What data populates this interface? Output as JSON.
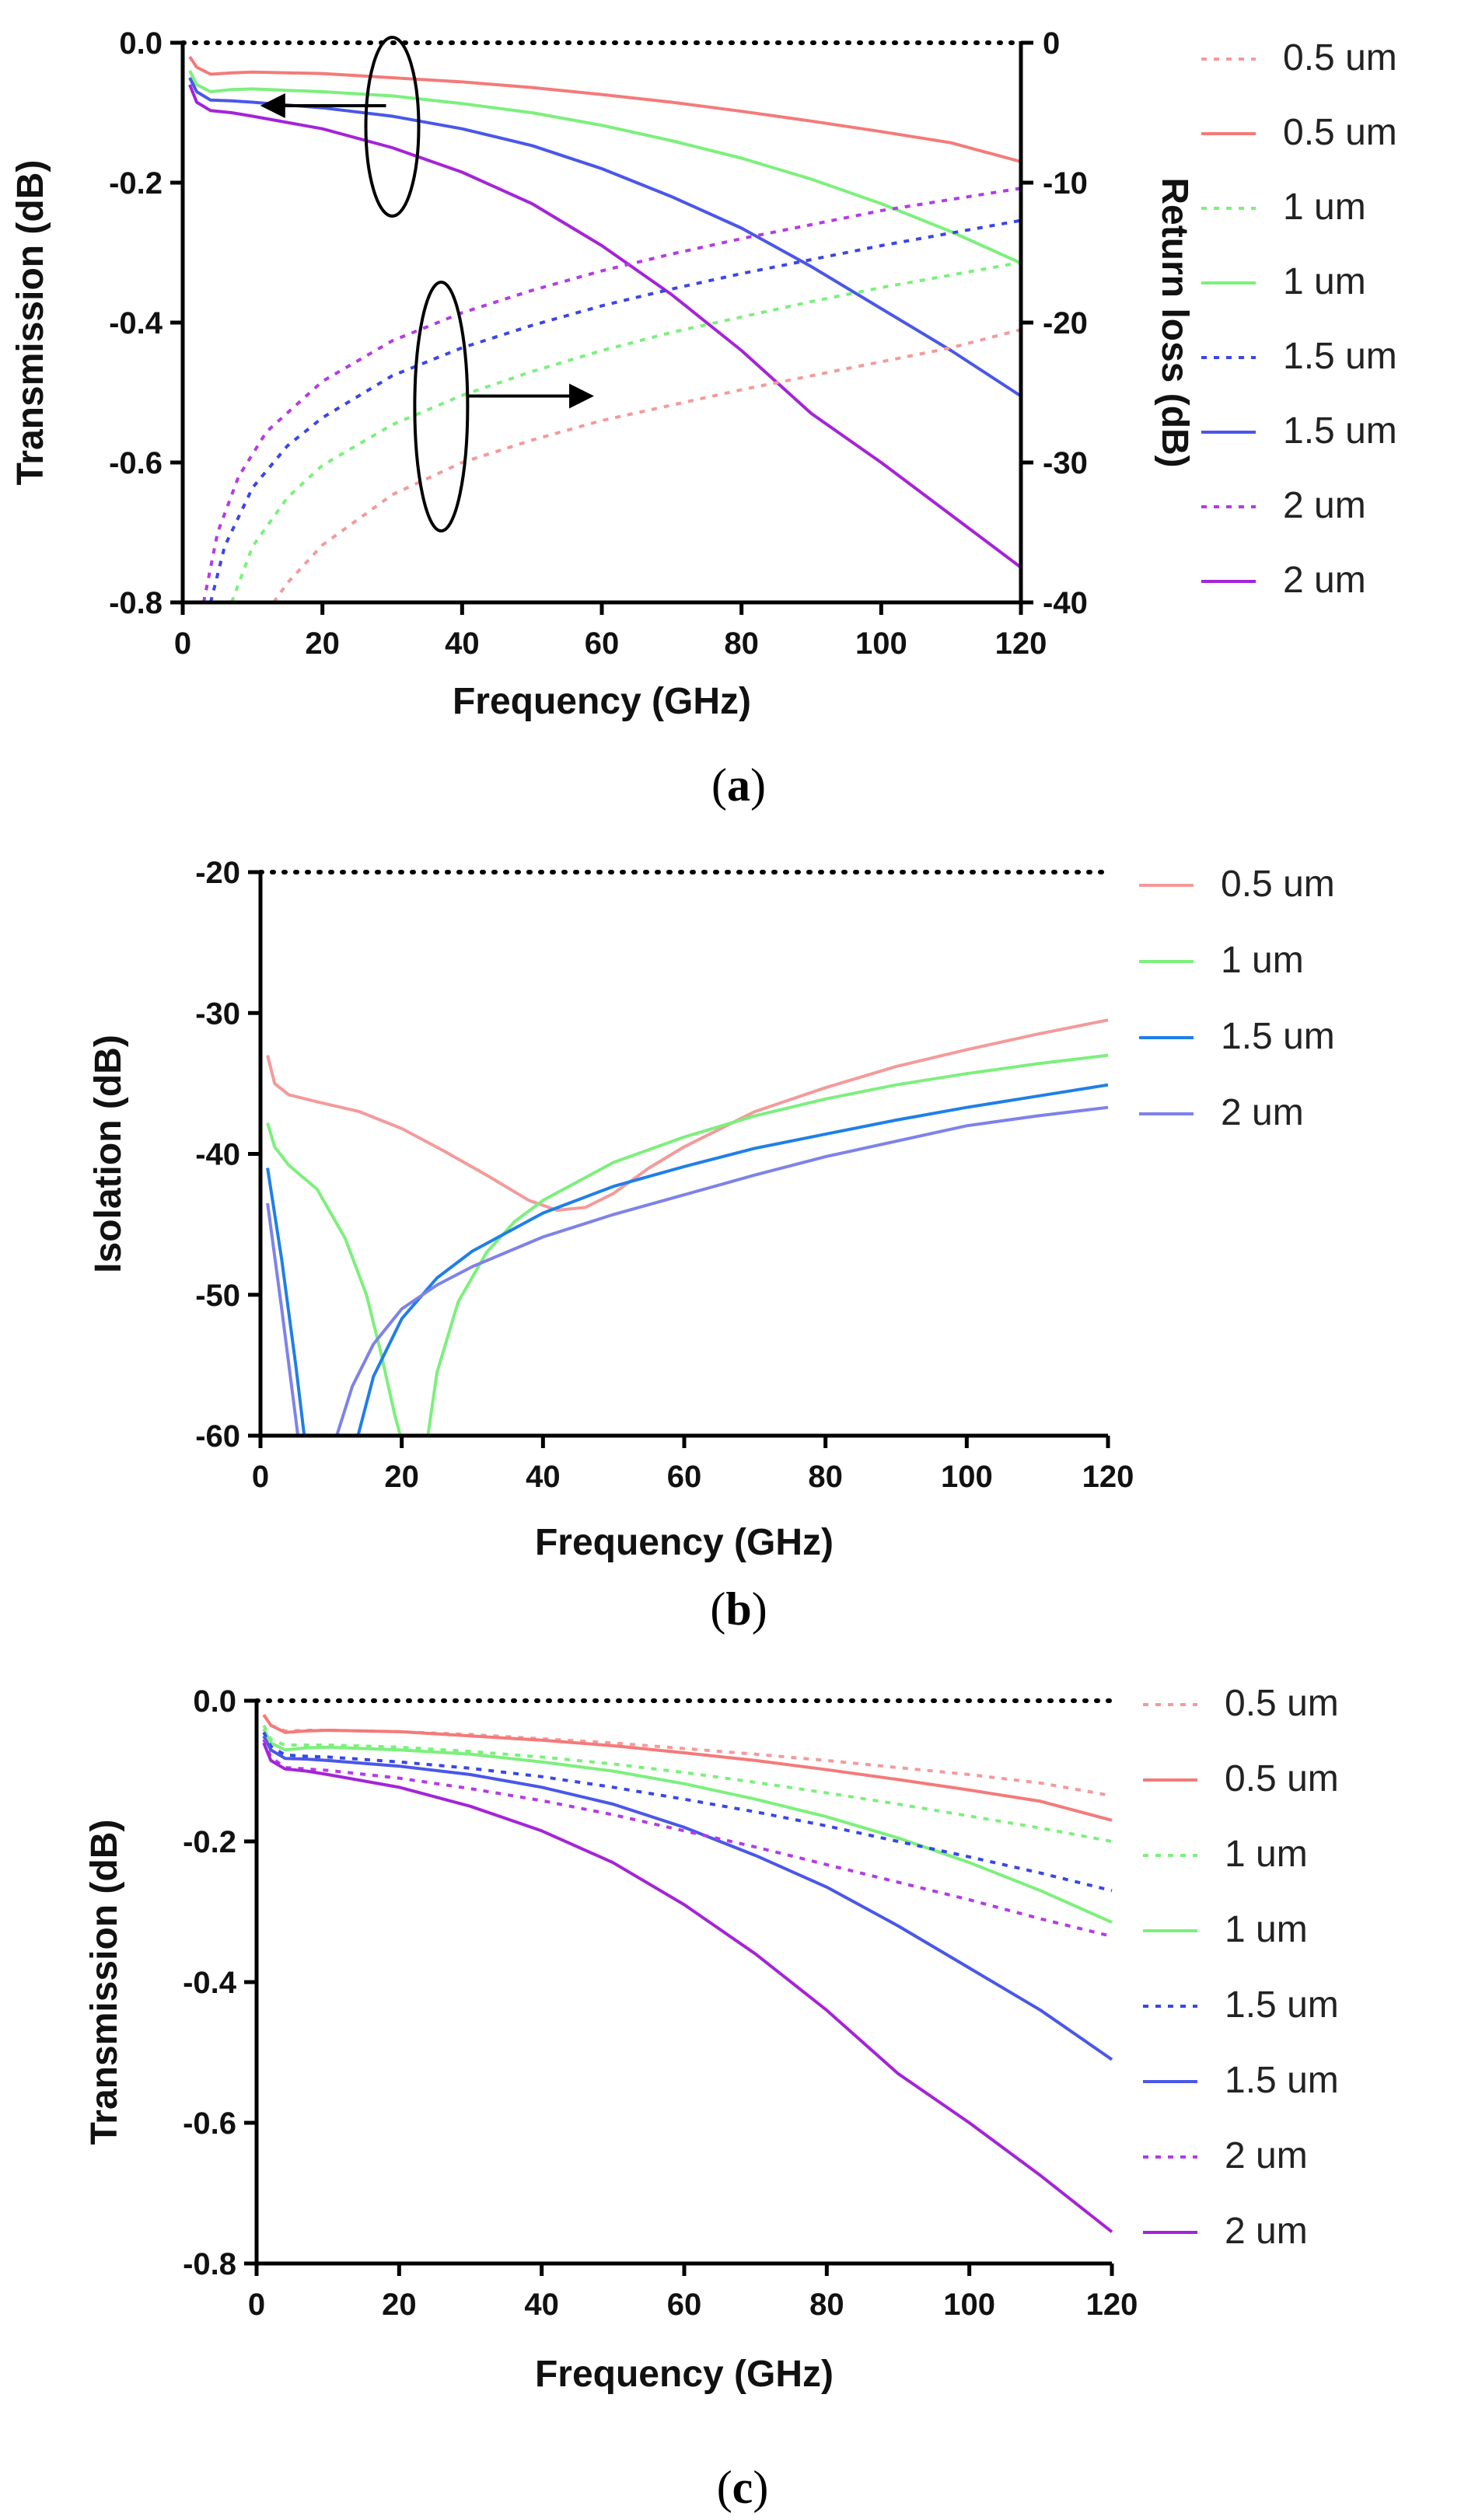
{
  "chart_data": [
    {
      "id": "a",
      "type": "line",
      "caption": "a",
      "xlabel": "Frequency (GHz)",
      "ylabel": "Transmission (dB)",
      "y2label": "Return loss (dB)",
      "xlim": [
        0,
        120
      ],
      "ylim": [
        -0.8,
        0.0
      ],
      "y2lim": [
        -40,
        0
      ],
      "xticks": [
        "0",
        "20",
        "40",
        "60",
        "80",
        "100",
        "120"
      ],
      "yticks": [
        "0.0",
        "-0.2",
        "-0.4",
        "-0.6",
        "-0.8"
      ],
      "y2ticks": [
        "0",
        "-10",
        "-20",
        "-30",
        "-40"
      ],
      "reference_line": 0.0,
      "legend": [
        {
          "label": "0.5 um",
          "color": "#f49a9a",
          "style": "dotted"
        },
        {
          "label": "0.5 um",
          "color": "#f47a7a",
          "style": "solid"
        },
        {
          "label": "1 um",
          "color": "#7cf07c",
          "style": "dotted"
        },
        {
          "label": "1 um",
          "color": "#7cf07c",
          "style": "solid"
        },
        {
          "label": "1.5 um",
          "color": "#3a46e8",
          "style": "dotted"
        },
        {
          "label": "1.5 um",
          "color": "#4a57e8",
          "style": "solid"
        },
        {
          "label": "2 um",
          "color": "#b43ae8",
          "style": "dotted"
        },
        {
          "label": "2 um",
          "color": "#a424d8",
          "style": "solid"
        }
      ],
      "series": [
        {
          "name": "0.5 um",
          "style": "solid",
          "axis": "left",
          "color": "#f47a7a",
          "x": [
            1,
            2,
            4,
            7,
            10,
            20,
            30,
            40,
            50,
            60,
            70,
            80,
            90,
            100,
            110,
            120
          ],
          "y": [
            -0.02,
            -0.035,
            -0.045,
            -0.043,
            -0.042,
            -0.044,
            -0.05,
            -0.056,
            -0.064,
            -0.074,
            -0.085,
            -0.098,
            -0.112,
            -0.127,
            -0.143,
            -0.17
          ]
        },
        {
          "name": "1 um",
          "style": "solid",
          "axis": "left",
          "color": "#7cf07c",
          "x": [
            1,
            2,
            4,
            7,
            10,
            20,
            30,
            40,
            50,
            60,
            70,
            80,
            90,
            100,
            110,
            120
          ],
          "y": [
            -0.04,
            -0.06,
            -0.07,
            -0.067,
            -0.066,
            -0.07,
            -0.076,
            -0.087,
            -0.1,
            -0.118,
            -0.14,
            -0.165,
            -0.195,
            -0.23,
            -0.27,
            -0.315
          ]
        },
        {
          "name": "1.5 um",
          "style": "solid",
          "axis": "left",
          "color": "#4a57e8",
          "x": [
            1,
            2,
            4,
            7,
            10,
            20,
            30,
            40,
            50,
            60,
            70,
            80,
            90,
            100,
            110,
            120
          ],
          "y": [
            -0.05,
            -0.07,
            -0.082,
            -0.083,
            -0.085,
            -0.093,
            -0.105,
            -0.123,
            -0.147,
            -0.18,
            -0.22,
            -0.265,
            -0.32,
            -0.38,
            -0.44,
            -0.505
          ]
        },
        {
          "name": "2 um",
          "style": "solid",
          "axis": "left",
          "color": "#a424d8",
          "x": [
            1,
            2,
            4,
            7,
            10,
            20,
            30,
            40,
            50,
            60,
            70,
            80,
            90,
            100,
            110,
            120
          ],
          "y": [
            -0.06,
            -0.085,
            -0.097,
            -0.1,
            -0.105,
            -0.123,
            -0.15,
            -0.185,
            -0.23,
            -0.29,
            -0.36,
            -0.44,
            -0.53,
            -0.6,
            -0.675,
            -0.75
          ]
        },
        {
          "name": "0.5 um",
          "style": "dotted",
          "axis": "right",
          "color": "#f49a9a",
          "x": [
            13,
            15,
            20,
            30,
            40,
            50,
            60,
            70,
            80,
            90,
            100,
            110,
            120
          ],
          "y": [
            -40,
            -38.6,
            -35.9,
            -32.3,
            -30.0,
            -28.4,
            -27.0,
            -25.9,
            -24.8,
            -23.8,
            -22.8,
            -21.8,
            -20.5
          ]
        },
        {
          "name": "1 um",
          "style": "dotted",
          "axis": "right",
          "color": "#7cf07c",
          "x": [
            7,
            10,
            15,
            20,
            30,
            40,
            50,
            60,
            70,
            80,
            90,
            100,
            110,
            120
          ],
          "y": [
            -40,
            -36.0,
            -32.5,
            -30.2,
            -27.3,
            -25.2,
            -23.5,
            -22.0,
            -20.7,
            -19.6,
            -18.5,
            -17.5,
            -16.6,
            -15.7
          ]
        },
        {
          "name": "1.5 um",
          "style": "dotted",
          "axis": "right",
          "color": "#3a46e8",
          "x": [
            4,
            6,
            10,
            15,
            20,
            30,
            40,
            50,
            60,
            70,
            80,
            90,
            100,
            110,
            120
          ],
          "y": [
            -40,
            -36.0,
            -31.8,
            -28.8,
            -26.8,
            -23.8,
            -21.8,
            -20.2,
            -18.8,
            -17.6,
            -16.5,
            -15.5,
            -14.5,
            -13.6,
            -12.7
          ]
        },
        {
          "name": "2 um",
          "style": "dotted",
          "axis": "right",
          "color": "#b43ae8",
          "x": [
            3,
            5,
            8,
            12,
            20,
            30,
            40,
            50,
            60,
            70,
            80,
            90,
            100,
            110,
            120
          ],
          "y": [
            -40,
            -35.0,
            -31.0,
            -27.8,
            -24.2,
            -21.3,
            -19.3,
            -17.7,
            -16.3,
            -15.1,
            -14.0,
            -13.0,
            -12.0,
            -11.2,
            -10.4
          ]
        }
      ],
      "annotations": [
        {
          "type": "ellipse-arrow",
          "target_axis": "left",
          "direction": "left"
        },
        {
          "type": "ellipse-arrow",
          "target_axis": "right",
          "direction": "right"
        }
      ]
    },
    {
      "id": "b",
      "type": "line",
      "caption": "b",
      "xlabel": "Frequency (GHz)",
      "ylabel": "Isolation (dB)",
      "xlim": [
        0,
        120
      ],
      "ylim": [
        -60,
        -20
      ],
      "xticks": [
        "0",
        "20",
        "40",
        "60",
        "80",
        "100",
        "120"
      ],
      "yticks": [
        "-20",
        "-30",
        "-40",
        "-50",
        "-60"
      ],
      "reference_line": -20,
      "legend": [
        {
          "label": "0.5 um",
          "color": "#f49a9a",
          "style": "solid"
        },
        {
          "label": "1 um",
          "color": "#7cf07c",
          "style": "solid"
        },
        {
          "label": "1.5 um",
          "color": "#1f7fe8",
          "style": "solid"
        },
        {
          "label": "2 um",
          "color": "#7e82e8",
          "style": "solid"
        }
      ],
      "series": [
        {
          "name": "0.5 um",
          "color": "#f49a9a",
          "x": [
            1,
            2,
            4,
            8,
            14,
            20,
            26,
            32,
            38,
            42,
            46,
            50,
            55,
            60,
            70,
            80,
            90,
            100,
            110,
            120
          ],
          "y": [
            -33,
            -35,
            -35.8,
            -36.3,
            -37,
            -38.2,
            -39.8,
            -41.5,
            -43.3,
            -44,
            -43.8,
            -42.8,
            -41,
            -39.5,
            -37,
            -35.3,
            -33.8,
            -32.6,
            -31.5,
            -30.5
          ]
        },
        {
          "name": "1 um",
          "color": "#7cf07c",
          "x": [
            1,
            2,
            4,
            8,
            12,
            15,
            17,
            19,
            19.8,
            23.7,
            25,
            28,
            32,
            36,
            40,
            50,
            60,
            70,
            80,
            90,
            100,
            110,
            120
          ],
          "y": [
            -37.8,
            -39.5,
            -40.8,
            -42.5,
            -46,
            -50,
            -54,
            -58.5,
            -60,
            -60,
            -55.5,
            -50.5,
            -47,
            -44.8,
            -43.3,
            -40.6,
            -38.8,
            -37.3,
            -36.1,
            -35.1,
            -34.3,
            -33.6,
            -33
          ]
        },
        {
          "name": "1.5 um",
          "color": "#1f7fe8",
          "x": [
            1,
            3,
            5,
            6.2,
            13.8,
            16,
            20,
            25,
            30,
            40,
            50,
            60,
            70,
            80,
            90,
            100,
            110,
            120
          ],
          "y": [
            -41,
            -47.5,
            -55,
            -60,
            -60,
            -55.8,
            -51.7,
            -48.8,
            -46.9,
            -44.2,
            -42.3,
            -40.9,
            -39.6,
            -38.6,
            -37.6,
            -36.7,
            -35.9,
            -35.1
          ]
        },
        {
          "name": "2 um",
          "color": "#7e82e8",
          "x": [
            1,
            3,
            5,
            5.3,
            10.8,
            13,
            16,
            20,
            25,
            30,
            40,
            50,
            60,
            70,
            80,
            90,
            100,
            110,
            120
          ],
          "y": [
            -43.5,
            -51,
            -58.8,
            -60,
            -60,
            -56.5,
            -53.5,
            -51,
            -49.3,
            -48,
            -45.9,
            -44.3,
            -42.9,
            -41.5,
            -40.2,
            -39.1,
            -38,
            -37.3,
            -36.7
          ]
        }
      ]
    },
    {
      "id": "c",
      "type": "line",
      "caption": "c",
      "xlabel": "Frequency (GHz)",
      "ylabel": "Transmission (dB)",
      "xlim": [
        0,
        120
      ],
      "ylim": [
        -0.8,
        0.0
      ],
      "xticks": [
        "0",
        "20",
        "40",
        "60",
        "80",
        "100",
        "120"
      ],
      "yticks": [
        "0.0",
        "-0.2",
        "-0.4",
        "-0.6",
        "-0.8"
      ],
      "reference_line": 0.0,
      "legend": [
        {
          "label": "0.5 um",
          "color": "#f49a9a",
          "style": "dotted"
        },
        {
          "label": "0.5 um",
          "color": "#f47a7a",
          "style": "solid"
        },
        {
          "label": "1 um",
          "color": "#7cf07c",
          "style": "dotted"
        },
        {
          "label": "1 um",
          "color": "#7cf07c",
          "style": "solid"
        },
        {
          "label": "1.5 um",
          "color": "#3a46e8",
          "style": "dotted"
        },
        {
          "label": "1.5 um",
          "color": "#4a57e8",
          "style": "solid"
        },
        {
          "label": "2 um",
          "color": "#b43ae8",
          "style": "dotted"
        },
        {
          "label": "2 um",
          "color": "#a424d8",
          "style": "solid"
        }
      ],
      "series": [
        {
          "name": "0.5 um",
          "style": "dotted",
          "color": "#f49a9a",
          "x": [
            1,
            2,
            4,
            7,
            10,
            20,
            30,
            40,
            50,
            60,
            70,
            80,
            90,
            100,
            110,
            120
          ],
          "y": [
            -0.02,
            -0.035,
            -0.043,
            -0.042,
            -0.042,
            -0.044,
            -0.048,
            -0.054,
            -0.06,
            -0.068,
            -0.076,
            -0.085,
            -0.095,
            -0.105,
            -0.117,
            -0.135
          ]
        },
        {
          "name": "0.5 um",
          "style": "solid",
          "color": "#f47a7a",
          "x": [
            1,
            2,
            4,
            7,
            10,
            20,
            30,
            40,
            50,
            60,
            70,
            80,
            90,
            100,
            110,
            120
          ],
          "y": [
            -0.02,
            -0.035,
            -0.045,
            -0.043,
            -0.042,
            -0.044,
            -0.05,
            -0.056,
            -0.064,
            -0.074,
            -0.085,
            -0.098,
            -0.112,
            -0.127,
            -0.143,
            -0.17
          ]
        },
        {
          "name": "1 um",
          "style": "dotted",
          "color": "#7cf07c",
          "x": [
            1,
            2,
            4,
            7,
            10,
            20,
            30,
            40,
            50,
            60,
            70,
            80,
            90,
            100,
            110,
            120
          ],
          "y": [
            -0.035,
            -0.055,
            -0.063,
            -0.063,
            -0.063,
            -0.066,
            -0.072,
            -0.08,
            -0.09,
            -0.102,
            -0.116,
            -0.131,
            -0.147,
            -0.164,
            -0.181,
            -0.2
          ]
        },
        {
          "name": "1 um",
          "style": "solid",
          "color": "#7cf07c",
          "x": [
            1,
            2,
            4,
            7,
            10,
            20,
            30,
            40,
            50,
            60,
            70,
            80,
            90,
            100,
            110,
            120
          ],
          "y": [
            -0.04,
            -0.06,
            -0.07,
            -0.067,
            -0.066,
            -0.07,
            -0.076,
            -0.087,
            -0.1,
            -0.118,
            -0.14,
            -0.165,
            -0.195,
            -0.23,
            -0.27,
            -0.315
          ]
        },
        {
          "name": "1.5 um",
          "style": "dotted",
          "color": "#3a46e8",
          "x": [
            1,
            2,
            4,
            7,
            10,
            20,
            30,
            40,
            50,
            60,
            70,
            80,
            90,
            100,
            110,
            120
          ],
          "y": [
            -0.045,
            -0.065,
            -0.077,
            -0.079,
            -0.08,
            -0.087,
            -0.096,
            -0.108,
            -0.123,
            -0.14,
            -0.158,
            -0.178,
            -0.2,
            -0.222,
            -0.245,
            -0.27
          ]
        },
        {
          "name": "1.5 um",
          "style": "solid",
          "color": "#4a57e8",
          "x": [
            1,
            2,
            4,
            7,
            10,
            20,
            30,
            40,
            50,
            60,
            70,
            80,
            90,
            100,
            110,
            120
          ],
          "y": [
            -0.05,
            -0.07,
            -0.082,
            -0.083,
            -0.085,
            -0.093,
            -0.105,
            -0.123,
            -0.147,
            -0.18,
            -0.22,
            -0.265,
            -0.32,
            -0.38,
            -0.44,
            -0.51
          ]
        },
        {
          "name": "2 um",
          "style": "dotted",
          "color": "#b43ae8",
          "x": [
            1,
            2,
            4,
            7,
            10,
            20,
            30,
            40,
            50,
            60,
            70,
            80,
            90,
            100,
            110,
            120
          ],
          "y": [
            -0.055,
            -0.08,
            -0.095,
            -0.097,
            -0.099,
            -0.11,
            -0.125,
            -0.142,
            -0.162,
            -0.185,
            -0.208,
            -0.233,
            -0.258,
            -0.283,
            -0.31,
            -0.335
          ]
        },
        {
          "name": "2 um",
          "style": "solid",
          "color": "#a424d8",
          "x": [
            1,
            2,
            4,
            7,
            10,
            20,
            30,
            40,
            50,
            60,
            70,
            80,
            90,
            100,
            110,
            120
          ],
          "y": [
            -0.06,
            -0.085,
            -0.097,
            -0.1,
            -0.105,
            -0.123,
            -0.15,
            -0.185,
            -0.23,
            -0.29,
            -0.36,
            -0.44,
            -0.53,
            -0.6,
            -0.675,
            -0.755
          ]
        }
      ]
    }
  ]
}
